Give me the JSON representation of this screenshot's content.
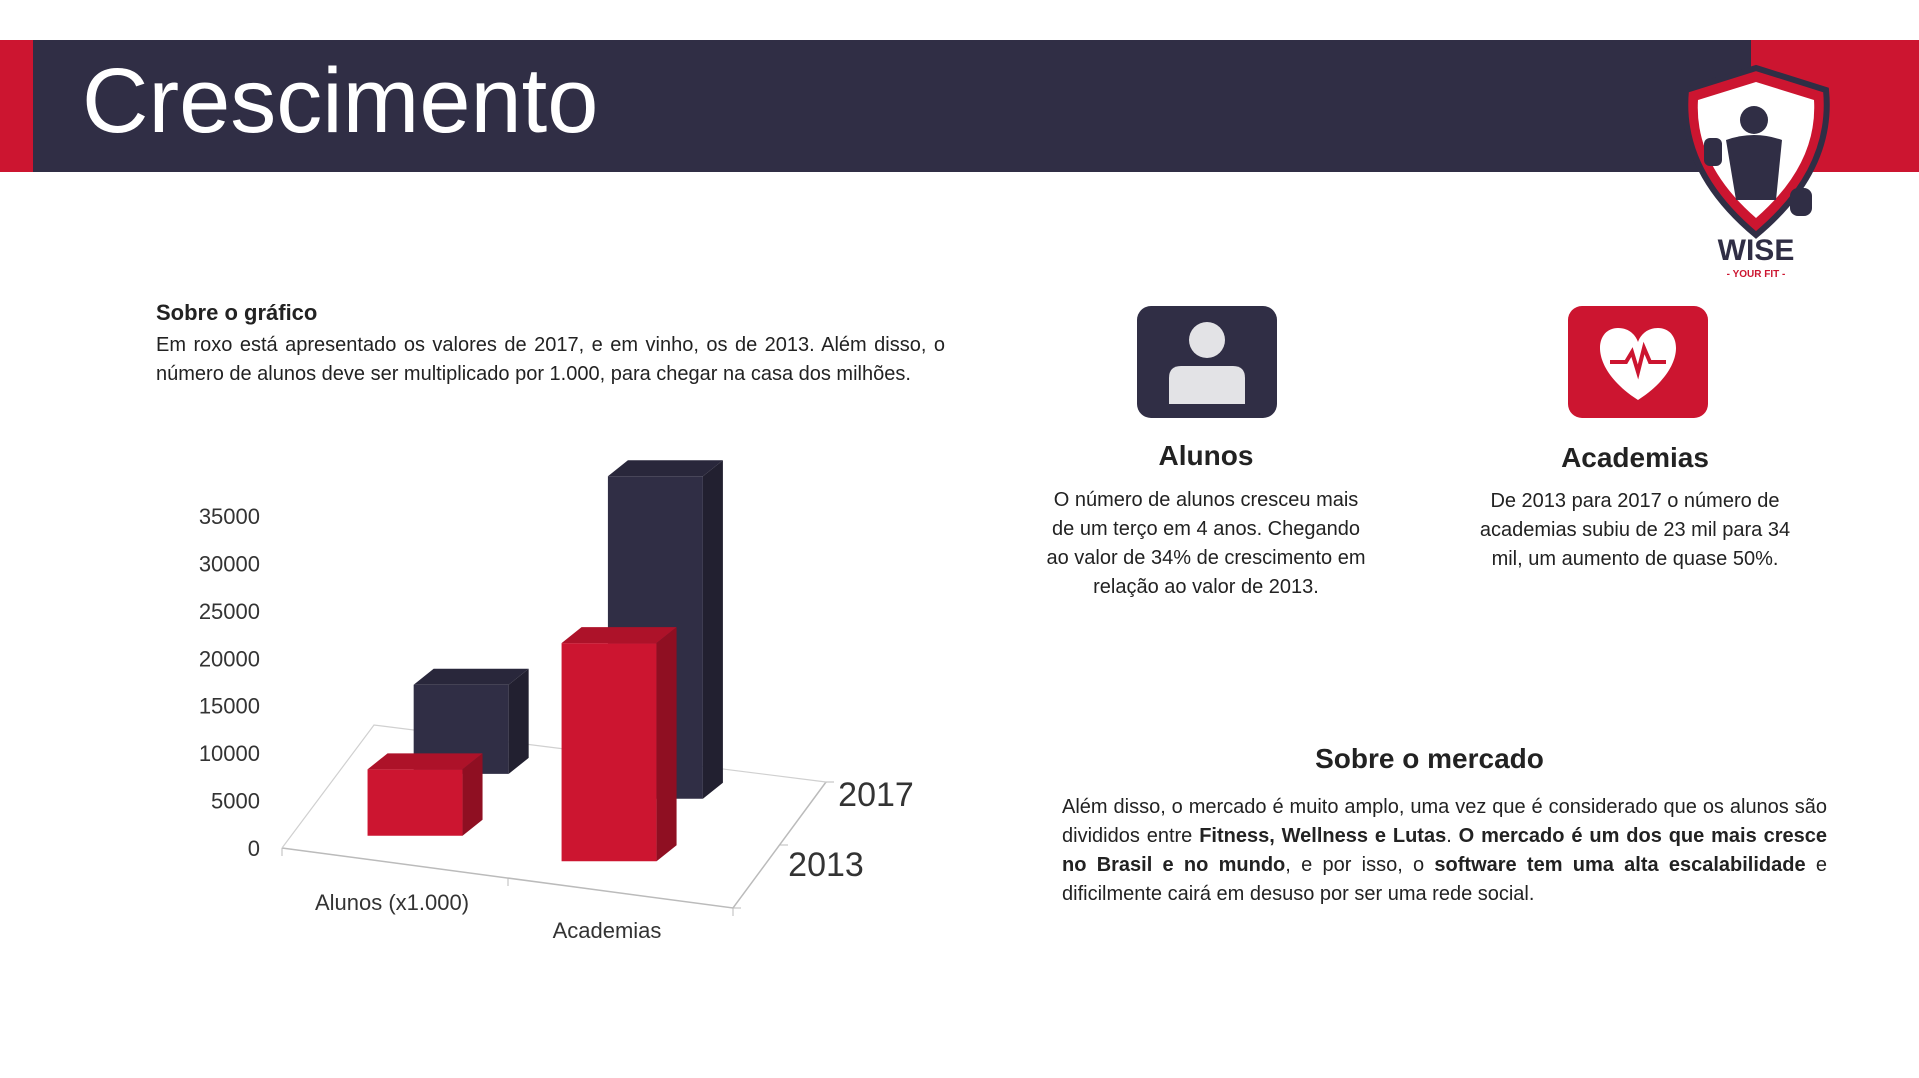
{
  "header": {
    "title": "Crescimento"
  },
  "logo": {
    "brand": "WISE",
    "tagline": "- YOUR FIT -"
  },
  "about_chart": {
    "title": "Sobre o gráfico",
    "text": "Em roxo está apresentado os valores de 2017, e em vinho, os de 2013. Além disso, o número de alunos deve ser multiplicado por 1.000, para chegar na casa dos milhões."
  },
  "cards": {
    "alunos": {
      "title": "Alunos",
      "text": "O número de alunos cresceu mais de um terço em 4 anos. Chegando ao valor de 34% de crescimento em relação ao valor de 2013."
    },
    "academias": {
      "title": "Academias",
      "text": "De 2013 para 2017 o número de academias subiu de 23 mil para 34 mil, um aumento de quase 50%."
    }
  },
  "mercado": {
    "title": "Sobre o mercado",
    "text_1": "Além disso, o mercado é muito amplo, uma vez que é considerado que os alunos são divididos entre ",
    "bold_1": "Fitness, Wellness e Lutas",
    "text_2": ". ",
    "bold_2": "O mercado é um dos que mais cresce no Brasil e no mundo",
    "text_3": ", e por isso, o ",
    "bold_3": "software tem uma alta escalabilidade",
    "text_4": " e dificilmente cairá em desuso por ser uma rede social."
  },
  "colors": {
    "purple": "#302e45",
    "red": "#cc1530"
  },
  "chart_data": {
    "type": "bar",
    "categories": [
      "Alunos (x1.000)",
      "Academias"
    ],
    "series": [
      {
        "name": "2013",
        "values": [
          7000,
          23000
        ]
      },
      {
        "name": "2017",
        "values": [
          9400,
          34000
        ]
      }
    ],
    "yticks": [
      0,
      5000,
      10000,
      15000,
      20000,
      25000,
      30000,
      35000
    ],
    "ylim": [
      0,
      35000
    ],
    "grid": false
  }
}
